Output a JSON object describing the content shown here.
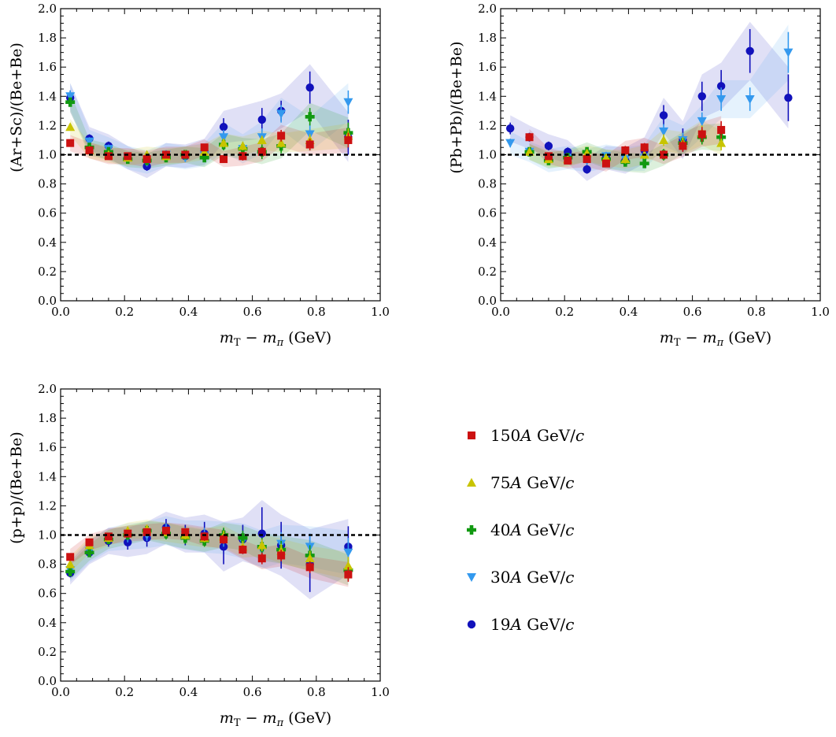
{
  "legend": {
    "entries": [
      {
        "key": "e150",
        "label": "150A GeV/c",
        "num": "150",
        "unit": " GeV/c",
        "color": "#cc1111",
        "marker": "square"
      },
      {
        "key": "e75",
        "label": "75A GeV/c",
        "num": "75",
        "unit": " GeV/c",
        "color": "#c8c400",
        "marker": "triangle-up"
      },
      {
        "key": "e40",
        "label": "40A GeV/c",
        "num": "40",
        "unit": " GeV/c",
        "color": "#119911",
        "marker": "plus"
      },
      {
        "key": "e30",
        "label": "30A GeV/c",
        "num": "30",
        "unit": " GeV/c",
        "color": "#3399ee",
        "marker": "triangle-down"
      },
      {
        "key": "e19",
        "label": "19A GeV/c",
        "num": "19",
        "unit": " GeV/c",
        "color": "#1111bb",
        "marker": "circle"
      }
    ]
  },
  "chart_data": [
    {
      "type": "scatter",
      "xlabel": "m_T − m_π (GeV)",
      "ylabel": "(Ar+Sc)/(Be+Be)",
      "xlim": [
        0.0,
        1.0
      ],
      "ylim": [
        0.0,
        2.0
      ],
      "xticks": [
        "0.0",
        "0.2",
        "0.4",
        "0.6",
        "0.8",
        "1.0"
      ],
      "yticks": [
        "0.0",
        "0.2",
        "0.4",
        "0.6",
        "0.8",
        "1.0",
        "1.2",
        "1.4",
        "1.6",
        "1.8",
        "2.0"
      ],
      "reference_line": 1.0,
      "series": [
        {
          "name": "19A GeV/c",
          "key": "e19",
          "x": [
            0.03,
            0.09,
            0.15,
            0.21,
            0.27,
            0.33,
            0.39,
            0.45,
            0.51,
            0.63,
            0.69,
            0.78,
            0.9
          ],
          "y": [
            1.39,
            1.11,
            1.06,
            0.98,
            0.92,
            1.0,
            0.99,
            1.02,
            1.19,
            1.24,
            1.3,
            1.46,
            1.12
          ],
          "err": [
            0.05,
            0.03,
            0.03,
            0.03,
            0.03,
            0.03,
            0.03,
            0.04,
            0.06,
            0.08,
            0.07,
            0.11,
            0.12
          ]
        },
        {
          "name": "30A GeV/c",
          "key": "e30",
          "x": [
            0.03,
            0.09,
            0.15,
            0.21,
            0.27,
            0.33,
            0.39,
            0.45,
            0.51,
            0.57,
            0.63,
            0.69,
            0.78,
            0.9
          ],
          "y": [
            1.4,
            1.09,
            1.04,
            0.98,
            0.95,
            1.0,
            0.98,
            1.0,
            1.12,
            1.04,
            1.12,
            1.28,
            1.14,
            1.36
          ],
          "err": [
            0.04,
            0.03,
            0.03,
            0.03,
            0.03,
            0.03,
            0.03,
            0.03,
            0.05,
            0.05,
            0.06,
            0.06,
            0.07,
            0.08
          ]
        },
        {
          "name": "40A GeV/c",
          "key": "e40",
          "x": [
            0.03,
            0.09,
            0.15,
            0.21,
            0.27,
            0.33,
            0.39,
            0.45,
            0.51,
            0.57,
            0.63,
            0.69,
            0.78,
            0.9
          ],
          "y": [
            1.36,
            1.05,
            1.02,
            0.97,
            0.96,
            0.98,
            1.0,
            0.98,
            1.07,
            1.04,
            1.02,
            1.06,
            1.26,
            1.15
          ],
          "err": [
            0.03,
            0.02,
            0.02,
            0.02,
            0.02,
            0.02,
            0.02,
            0.03,
            0.04,
            0.04,
            0.05,
            0.05,
            0.06,
            0.07
          ]
        },
        {
          "name": "75A GeV/c",
          "key": "e75",
          "x": [
            0.03,
            0.09,
            0.15,
            0.21,
            0.27,
            0.33,
            0.39,
            0.45,
            0.51,
            0.57,
            0.63,
            0.69,
            0.78,
            0.9
          ],
          "y": [
            1.19,
            1.03,
            1.0,
            0.98,
            1.0,
            0.99,
            1.0,
            1.02,
            1.08,
            1.06,
            1.1,
            1.08,
            1.1,
            1.13
          ],
          "err": [
            0.02,
            0.02,
            0.02,
            0.02,
            0.02,
            0.02,
            0.02,
            0.02,
            0.03,
            0.03,
            0.03,
            0.03,
            0.04,
            0.05
          ]
        },
        {
          "name": "150A GeV/c",
          "key": "e150",
          "x": [
            0.03,
            0.09,
            0.15,
            0.21,
            0.27,
            0.33,
            0.39,
            0.45,
            0.51,
            0.57,
            0.63,
            0.69,
            0.78,
            0.9
          ],
          "y": [
            1.08,
            1.03,
            0.99,
            0.99,
            0.97,
            1.0,
            1.0,
            1.05,
            0.97,
            0.99,
            1.02,
            1.13,
            1.07,
            1.1
          ],
          "err": [
            0.02,
            0.02,
            0.02,
            0.02,
            0.02,
            0.02,
            0.02,
            0.02,
            0.02,
            0.03,
            0.03,
            0.04,
            0.04,
            0.05
          ]
        }
      ]
    },
    {
      "type": "scatter",
      "xlabel": "m_T − m_π (GeV)",
      "ylabel": "(Pb+Pb)/(Be+Be)",
      "xlim": [
        0.0,
        1.0
      ],
      "ylim": [
        0.0,
        2.0
      ],
      "xticks": [
        "0.0",
        "0.2",
        "0.4",
        "0.6",
        "0.8",
        "1.0"
      ],
      "yticks": [
        "0.0",
        "0.2",
        "0.4",
        "0.6",
        "0.8",
        "1.0",
        "1.2",
        "1.4",
        "1.6",
        "1.8",
        "2.0"
      ],
      "reference_line": 1.0,
      "series": [
        {
          "name": "19A GeV/c",
          "key": "e19",
          "x": [
            0.03,
            0.09,
            0.15,
            0.21,
            0.27,
            0.33,
            0.39,
            0.45,
            0.51,
            0.57,
            0.63,
            0.69,
            0.78,
            0.9
          ],
          "y": [
            1.18,
            1.12,
            1.06,
            1.02,
            0.9,
            0.98,
            0.96,
            1.03,
            1.27,
            1.1,
            1.4,
            1.47,
            1.71,
            1.39
          ],
          "err": [
            0.04,
            0.03,
            0.03,
            0.03,
            0.03,
            0.03,
            0.04,
            0.04,
            0.07,
            0.08,
            0.1,
            0.11,
            0.15,
            0.16
          ]
        },
        {
          "name": "30A GeV/c",
          "key": "e30",
          "x": [
            0.03,
            0.09,
            0.15,
            0.21,
            0.27,
            0.33,
            0.39,
            0.45,
            0.51,
            0.57,
            0.63,
            0.69,
            0.78,
            0.9
          ],
          "y": [
            1.08,
            1.02,
            0.96,
            0.98,
            0.96,
            0.99,
            0.97,
            0.98,
            1.16,
            1.1,
            1.23,
            1.38,
            1.38,
            1.7
          ],
          "err": [
            0.03,
            0.02,
            0.03,
            0.03,
            0.03,
            0.03,
            0.03,
            0.04,
            0.05,
            0.05,
            0.06,
            0.08,
            0.08,
            0.14
          ]
        },
        {
          "name": "40A GeV/c",
          "key": "e40",
          "x": [
            0.09,
            0.15,
            0.21,
            0.27,
            0.33,
            0.39,
            0.45,
            0.51,
            0.57,
            0.63,
            0.69
          ],
          "y": [
            1.02,
            0.96,
            0.98,
            1.02,
            0.97,
            0.95,
            0.94,
            1.0,
            1.08,
            1.12,
            1.12
          ],
          "err": [
            0.02,
            0.02,
            0.02,
            0.03,
            0.03,
            0.03,
            0.03,
            0.04,
            0.04,
            0.05,
            0.06
          ]
        },
        {
          "name": "75A GeV/c",
          "key": "e75",
          "x": [
            0.09,
            0.15,
            0.21,
            0.27,
            0.33,
            0.39,
            0.45,
            0.51,
            0.57,
            0.63,
            0.69
          ],
          "y": [
            1.02,
            0.97,
            0.97,
            1.01,
            0.98,
            0.97,
            1.0,
            1.1,
            1.08,
            1.15,
            1.08
          ],
          "err": [
            0.02,
            0.02,
            0.02,
            0.02,
            0.02,
            0.03,
            0.03,
            0.04,
            0.04,
            0.05,
            0.05
          ]
        },
        {
          "name": "150A GeV/c",
          "key": "e150",
          "x": [
            0.09,
            0.15,
            0.21,
            0.27,
            0.33,
            0.39,
            0.45,
            0.51,
            0.57,
            0.63,
            0.69
          ],
          "y": [
            1.12,
            0.99,
            0.96,
            0.97,
            0.94,
            1.03,
            1.05,
            1.0,
            1.06,
            1.14,
            1.17
          ],
          "err": [
            0.02,
            0.02,
            0.02,
            0.02,
            0.02,
            0.03,
            0.03,
            0.03,
            0.04,
            0.05,
            0.06
          ]
        }
      ]
    },
    {
      "type": "scatter",
      "xlabel": "m_T − m_π (GeV)",
      "ylabel": "(p+p)/(Be+Be)",
      "xlim": [
        0.0,
        1.0
      ],
      "ylim": [
        0.0,
        2.0
      ],
      "xticks": [
        "0.0",
        "0.2",
        "0.4",
        "0.6",
        "0.8",
        "1.0"
      ],
      "yticks": [
        "0.0",
        "0.2",
        "0.4",
        "0.6",
        "0.8",
        "1.0",
        "1.2",
        "1.4",
        "1.6",
        "1.8",
        "2.0"
      ],
      "reference_line": 1.0,
      "series": [
        {
          "name": "19A GeV/c",
          "key": "e19",
          "x": [
            0.03,
            0.09,
            0.15,
            0.21,
            0.27,
            0.33,
            0.39,
            0.45,
            0.51,
            0.57,
            0.63,
            0.69,
            0.78,
            0.9
          ],
          "y": [
            0.74,
            0.88,
            0.96,
            0.95,
            0.98,
            1.05,
            1.0,
            1.01,
            0.92,
            0.97,
            1.01,
            0.93,
            0.8,
            0.92
          ],
          "err": [
            0.03,
            0.03,
            0.04,
            0.05,
            0.06,
            0.06,
            0.07,
            0.08,
            0.12,
            0.1,
            0.18,
            0.16,
            0.19,
            0.14
          ]
        },
        {
          "name": "30A GeV/c",
          "key": "e30",
          "x": [
            0.03,
            0.09,
            0.15,
            0.21,
            0.27,
            0.33,
            0.39,
            0.45,
            0.51,
            0.57,
            0.63,
            0.69,
            0.78,
            0.9
          ],
          "y": [
            0.76,
            0.89,
            0.97,
            0.99,
            1.0,
            1.03,
            1.0,
            0.99,
            0.98,
            0.96,
            0.9,
            0.94,
            0.92,
            0.88
          ],
          "err": [
            0.03,
            0.03,
            0.03,
            0.04,
            0.04,
            0.05,
            0.05,
            0.06,
            0.06,
            0.07,
            0.08,
            0.08,
            0.09,
            0.1
          ]
        },
        {
          "name": "40A GeV/c",
          "key": "e40",
          "x": [
            0.03,
            0.09,
            0.15,
            0.21,
            0.27,
            0.33,
            0.39,
            0.45,
            0.51,
            0.57,
            0.63,
            0.69,
            0.78,
            0.9
          ],
          "y": [
            0.75,
            0.88,
            0.97,
            1.0,
            1.03,
            1.01,
            0.98,
            0.96,
            1.0,
            0.98,
            0.92,
            0.9,
            0.86,
            0.76
          ],
          "err": [
            0.02,
            0.02,
            0.03,
            0.03,
            0.03,
            0.04,
            0.04,
            0.04,
            0.05,
            0.05,
            0.06,
            0.06,
            0.07,
            0.07
          ]
        },
        {
          "name": "75A GeV/c",
          "key": "e75",
          "x": [
            0.03,
            0.09,
            0.15,
            0.21,
            0.27,
            0.33,
            0.39,
            0.45,
            0.51,
            0.57,
            0.63,
            0.69,
            0.78,
            0.9
          ],
          "y": [
            0.8,
            0.93,
            0.98,
            1.03,
            1.04,
            1.02,
            1.0,
            0.98,
            0.99,
            0.92,
            0.93,
            0.89,
            0.84,
            0.79
          ],
          "err": [
            0.02,
            0.02,
            0.02,
            0.02,
            0.03,
            0.03,
            0.03,
            0.03,
            0.04,
            0.04,
            0.04,
            0.05,
            0.05,
            0.06
          ]
        },
        {
          "name": "150A GeV/c",
          "key": "e150",
          "x": [
            0.03,
            0.09,
            0.15,
            0.21,
            0.27,
            0.33,
            0.39,
            0.45,
            0.51,
            0.57,
            0.63,
            0.69,
            0.78,
            0.9
          ],
          "y": [
            0.85,
            0.95,
            0.99,
            1.01,
            1.02,
            1.03,
            1.02,
            0.99,
            0.97,
            0.9,
            0.84,
            0.86,
            0.78,
            0.73
          ],
          "err": [
            0.02,
            0.02,
            0.02,
            0.02,
            0.02,
            0.02,
            0.02,
            0.03,
            0.03,
            0.03,
            0.04,
            0.04,
            0.04,
            0.05
          ]
        }
      ]
    }
  ]
}
